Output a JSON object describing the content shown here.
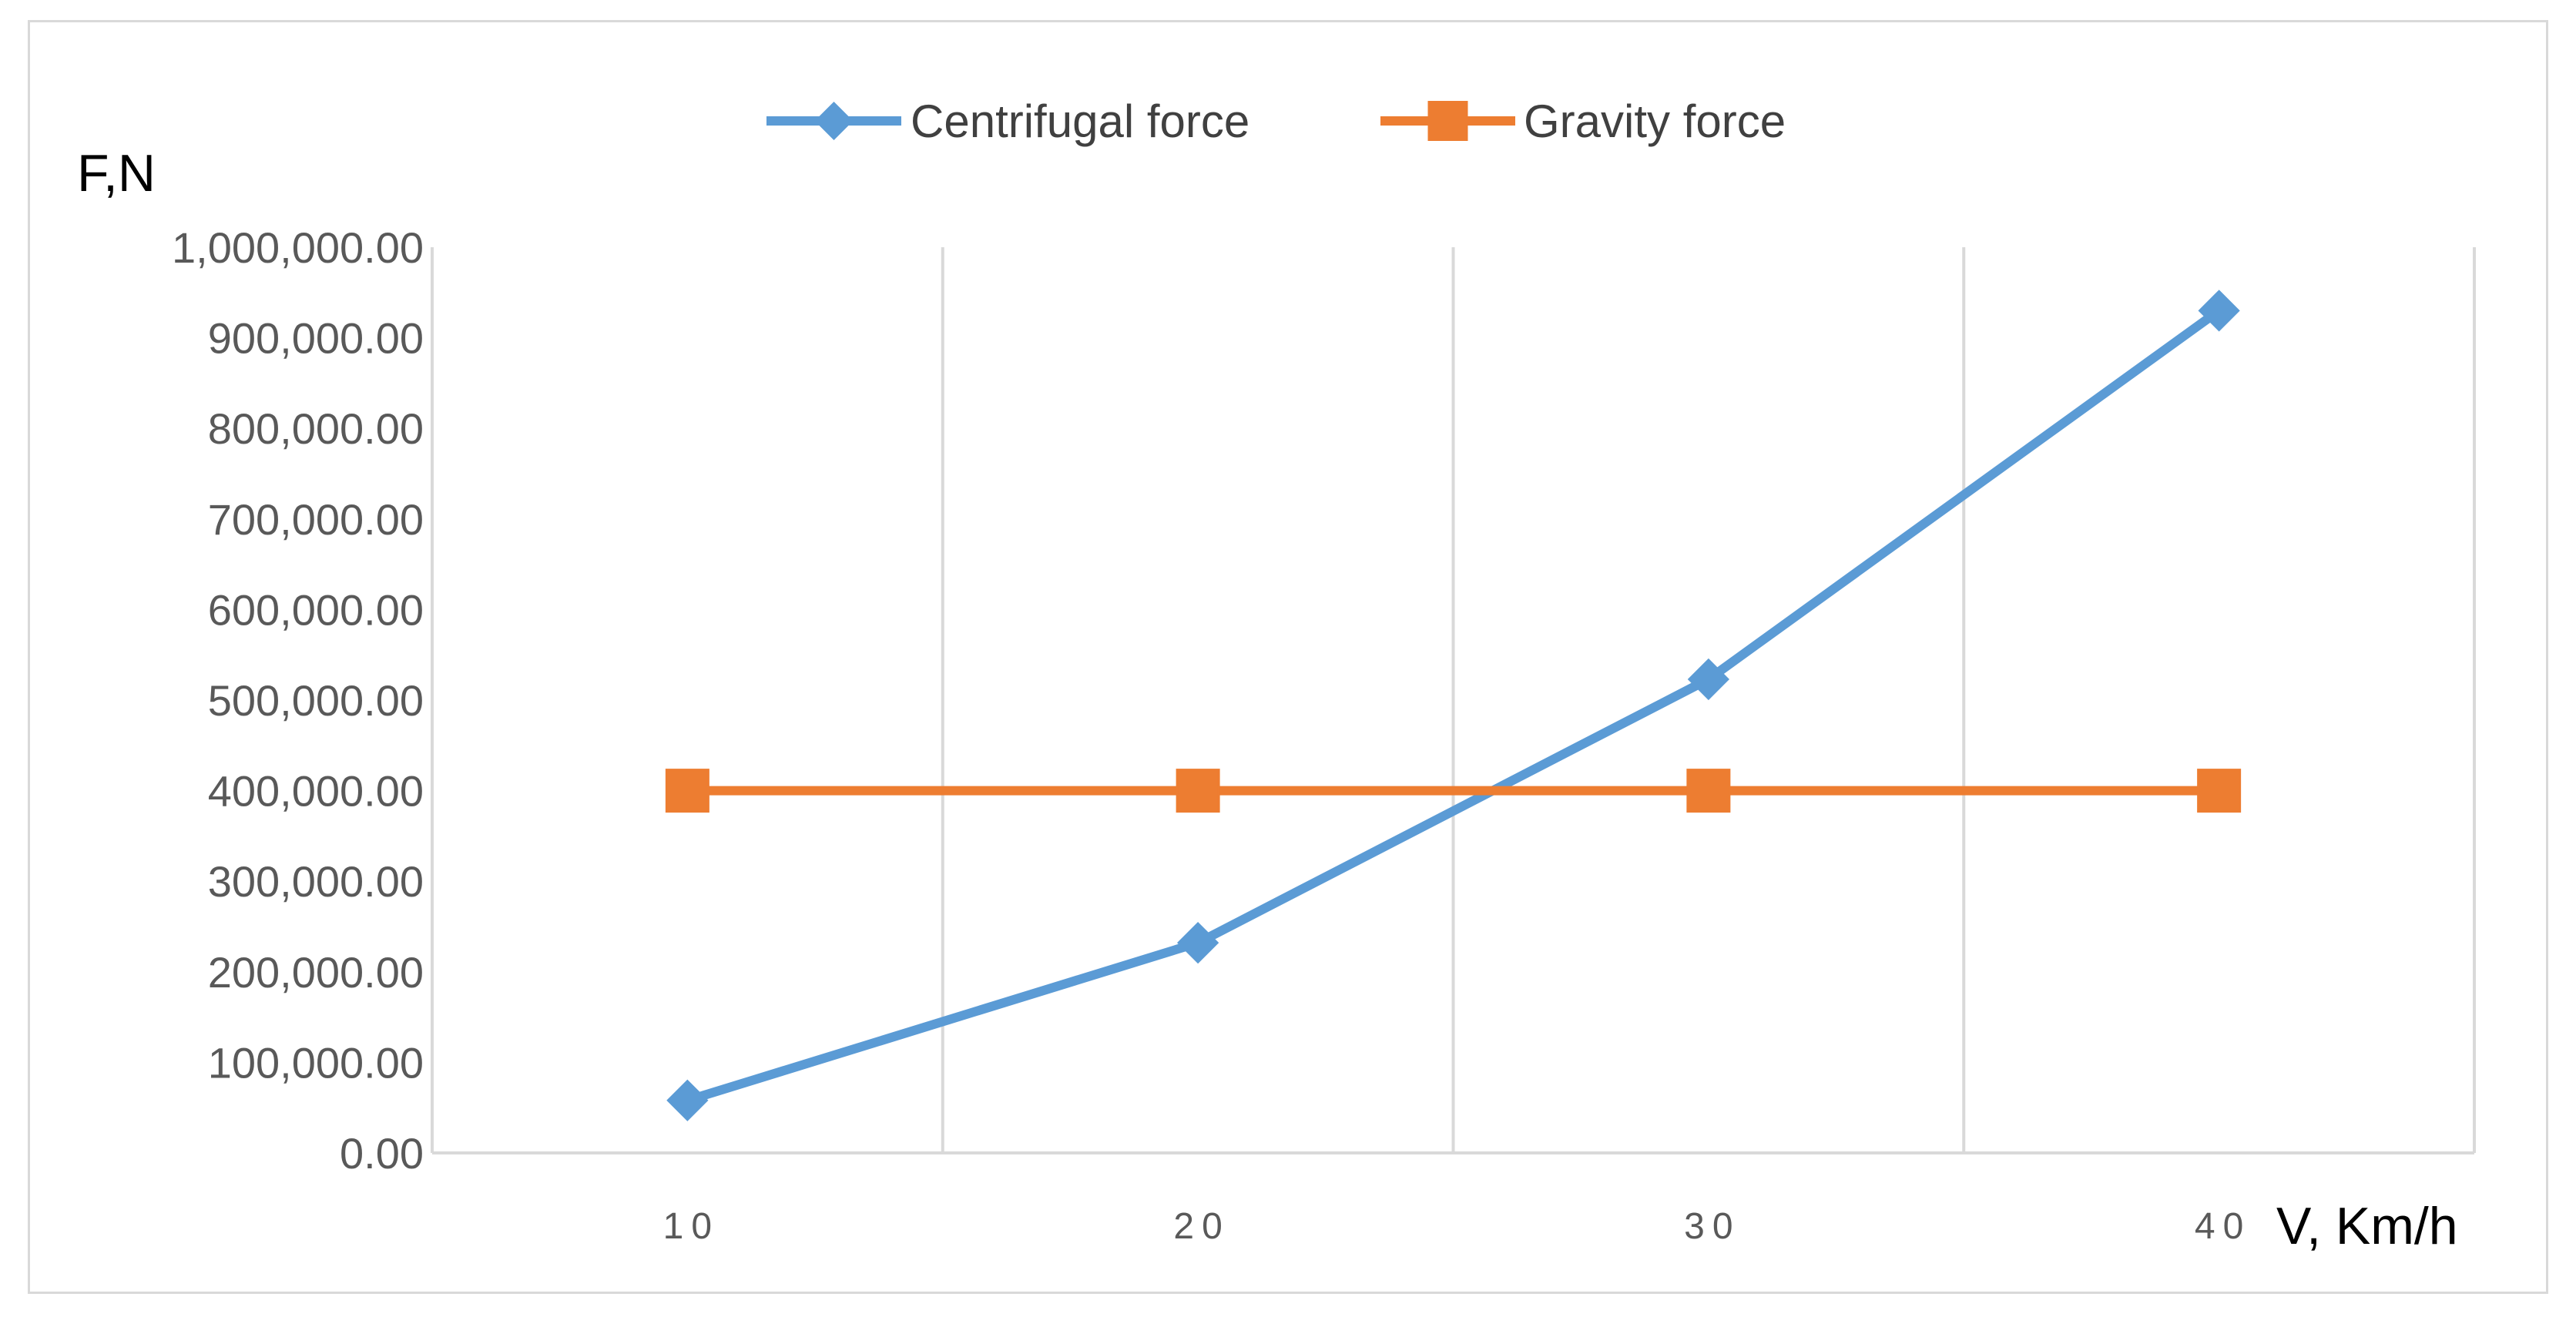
{
  "chart_data": {
    "type": "line",
    "xlabel": "V, Km/h",
    "ylabel": "F,N",
    "categories": [
      "10",
      "20",
      "30",
      "40"
    ],
    "x": [
      10,
      20,
      30,
      40
    ],
    "xlim": [
      5,
      45
    ],
    "ylim": [
      0,
      1000000
    ],
    "yticks": [
      0,
      100000,
      200000,
      300000,
      400000,
      500000,
      600000,
      700000,
      800000,
      900000,
      1000000
    ],
    "ytick_labels": [
      "0.00",
      "100,000.00",
      "200,000.00",
      "300,000.00",
      "400,000.00",
      "500,000.00",
      "600,000.00",
      "700,000.00",
      "800,000.00",
      "900,000.00",
      "1,000,000.00"
    ],
    "grid": "vertical",
    "legend_position": "top-center",
    "series": [
      {
        "name": "Centrifugal force",
        "values": [
          58000,
          232000,
          523000,
          930000
        ],
        "color": "#5b9bd5",
        "marker": "diamond"
      },
      {
        "name": "Gravity force",
        "values": [
          400000,
          400000,
          400000,
          400000
        ],
        "color": "#ed7d31",
        "marker": "square"
      }
    ]
  }
}
